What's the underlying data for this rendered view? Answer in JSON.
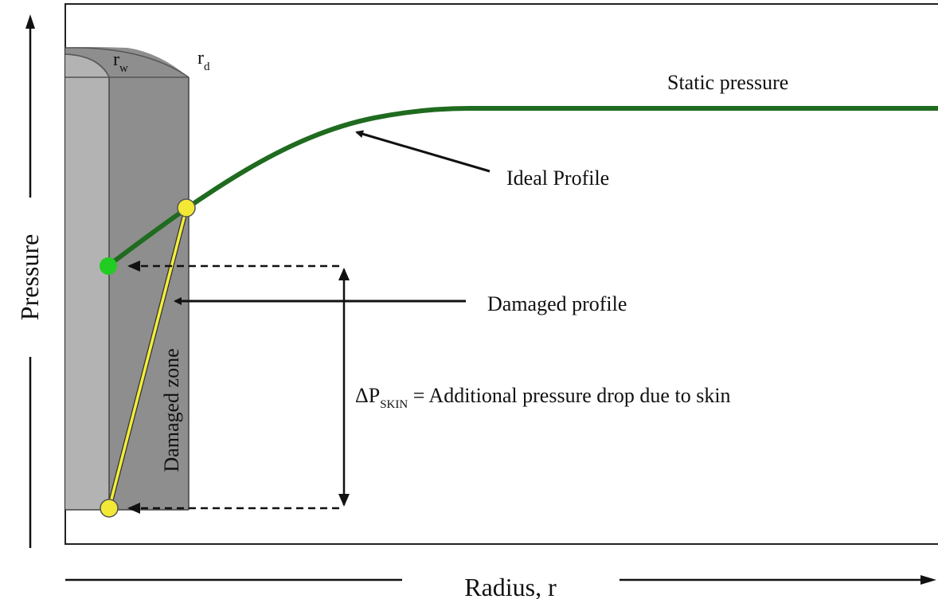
{
  "axes": {
    "y_label": "Pressure",
    "x_label": "Radius, r"
  },
  "well": {
    "rw_label": "r",
    "rw_sub": "w",
    "rd_label": "r",
    "rd_sub": "d",
    "zone_label": "Damaged zone"
  },
  "annotations": {
    "static": "Static pressure",
    "ideal": "Ideal Profile",
    "damaged": "Damaged profile",
    "dp_prefix": "ΔP",
    "dp_sub": "SKIN",
    "dp_text": " =  Additional pressure drop due to skin"
  },
  "colors": {
    "ideal_curve": "#1f6b1f",
    "damaged_line": "#f4ee3a",
    "well_light": "#b3b3b3",
    "well_dark": "#8e8e8e",
    "wellbore_dot": "#22cc22",
    "marker": "#f2e835"
  }
}
